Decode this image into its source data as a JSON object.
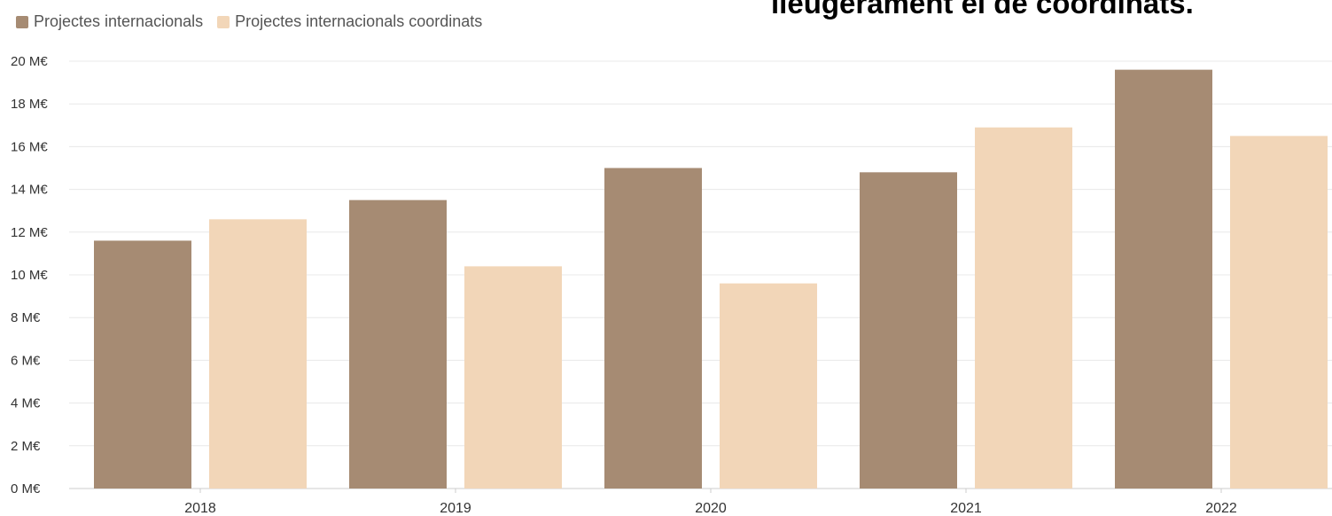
{
  "headline": "lleugerament el de coordinats.",
  "colors": {
    "series_1": "#a68b73",
    "series_2": "#f2d6b8",
    "grid": "#e8e8e8",
    "axis": "#cccccc"
  },
  "chart_data": {
    "type": "bar",
    "title": "",
    "xlabel": "",
    "ylabel": "",
    "categories": [
      "2018",
      "2019",
      "2020",
      "2021",
      "2022"
    ],
    "series": [
      {
        "name": "Projectes internacionals",
        "values": [
          11.6,
          13.5,
          15.0,
          14.8,
          19.6
        ]
      },
      {
        "name": "Projectes internacionals coordinats",
        "values": [
          12.6,
          10.4,
          9.6,
          16.9,
          16.5
        ]
      }
    ],
    "ylim": [
      0,
      20
    ],
    "yticks": [
      "0 M€",
      "2 M€",
      "4 M€",
      "6 M€",
      "8 M€",
      "10 M€",
      "12 M€",
      "14 M€",
      "16 M€",
      "18 M€",
      "20 M€"
    ],
    "grid": true,
    "legend_position": "top-left"
  }
}
